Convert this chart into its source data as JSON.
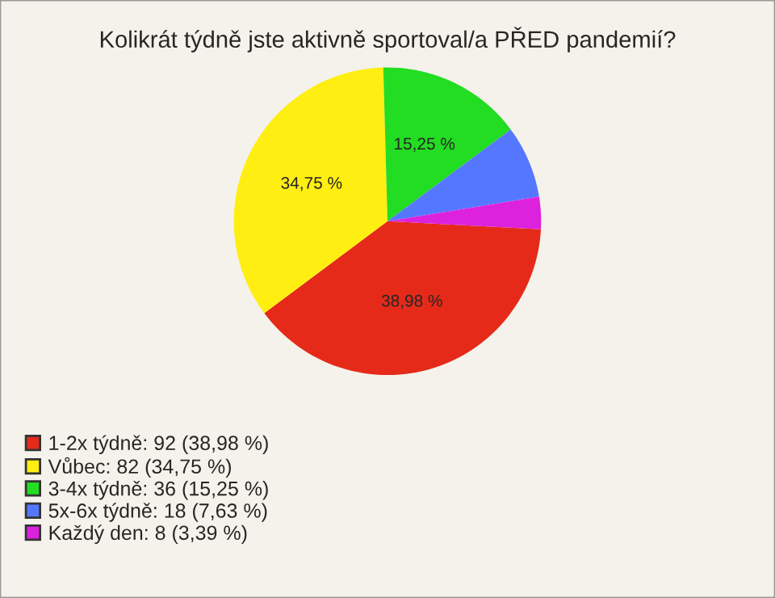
{
  "chart_data": {
    "type": "pie",
    "title": "Kolikrát týdně jste aktivně sportoval/a PŘED pandemií?",
    "categories": [
      "1-2x týdně: 92 (38,98 %)",
      "Vůbec: 82 (34,75 %)",
      "3-4x týdně: 36 (15,25 %)",
      "5x-6x týdně: 18 (7,63 %)",
      "Každý den: 8 (3,39 %)"
    ],
    "values": [
      38.98,
      34.75,
      15.25,
      7.63,
      3.39
    ],
    "colors": [
      "#e52a1a",
      "#ffee11",
      "#22dd22",
      "#5577ff",
      "#dd22dd"
    ],
    "value_labels": [
      "38,98 %",
      "34,75 %",
      "15,25 %",
      null,
      null
    ],
    "legend": "bottom left"
  }
}
